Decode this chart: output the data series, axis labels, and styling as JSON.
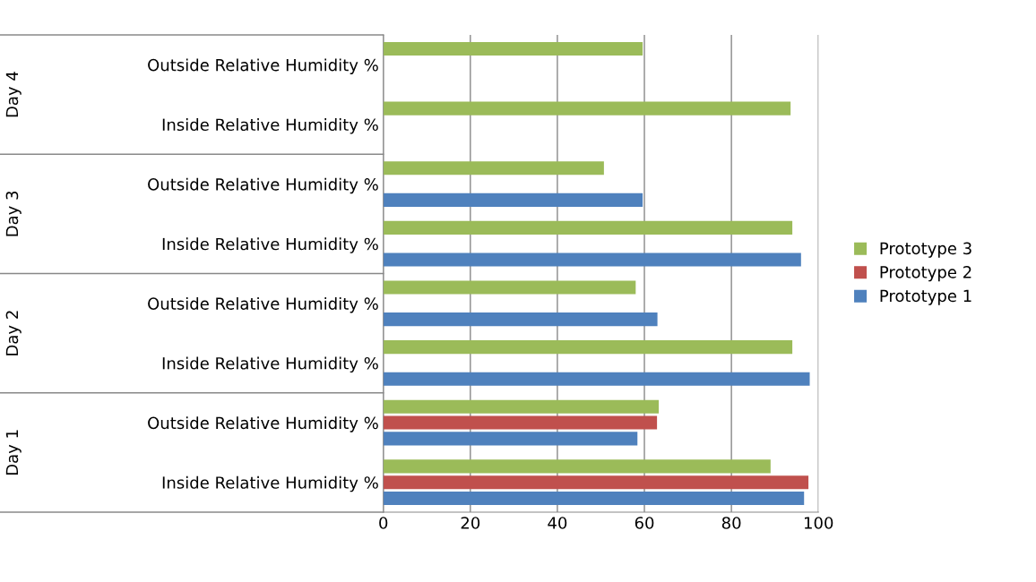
{
  "chart_data": {
    "type": "bar",
    "orientation": "horizontal",
    "categories": [
      "Outside Relative Humidity %",
      "Inside Relative Humidity %",
      "Outside Relative Humidity %",
      "Inside Relative Humidity %",
      "Outside Relative Humidity %",
      "Inside Relative Humidity %",
      "Outside Relative Humidity %",
      "Inside Relative Humidity %"
    ],
    "series": [
      {
        "name": "Prototype 3",
        "color": "#9bbb59",
        "values": [
          59.6,
          93.6,
          50.7,
          94,
          58,
          94,
          63.3,
          89
        ]
      },
      {
        "name": "Prototype 2",
        "color": "#c0504d",
        "values": [
          0,
          0,
          0,
          0,
          0,
          0,
          62.9,
          97.7
        ]
      },
      {
        "name": "Prototype 1",
        "color": "#4f81bd",
        "values": [
          0,
          0,
          59.6,
          96,
          63,
          98,
          58.4,
          96.7
        ]
      }
    ],
    "annotations": [
      "Day 4",
      "Day 3",
      "Day 2",
      "Day 1"
    ],
    "xlim": [
      0,
      100
    ],
    "xticks": [
      0,
      20,
      40,
      60,
      80,
      100
    ],
    "grid": "x",
    "legend": "right",
    "tick_labels": "xy"
  }
}
